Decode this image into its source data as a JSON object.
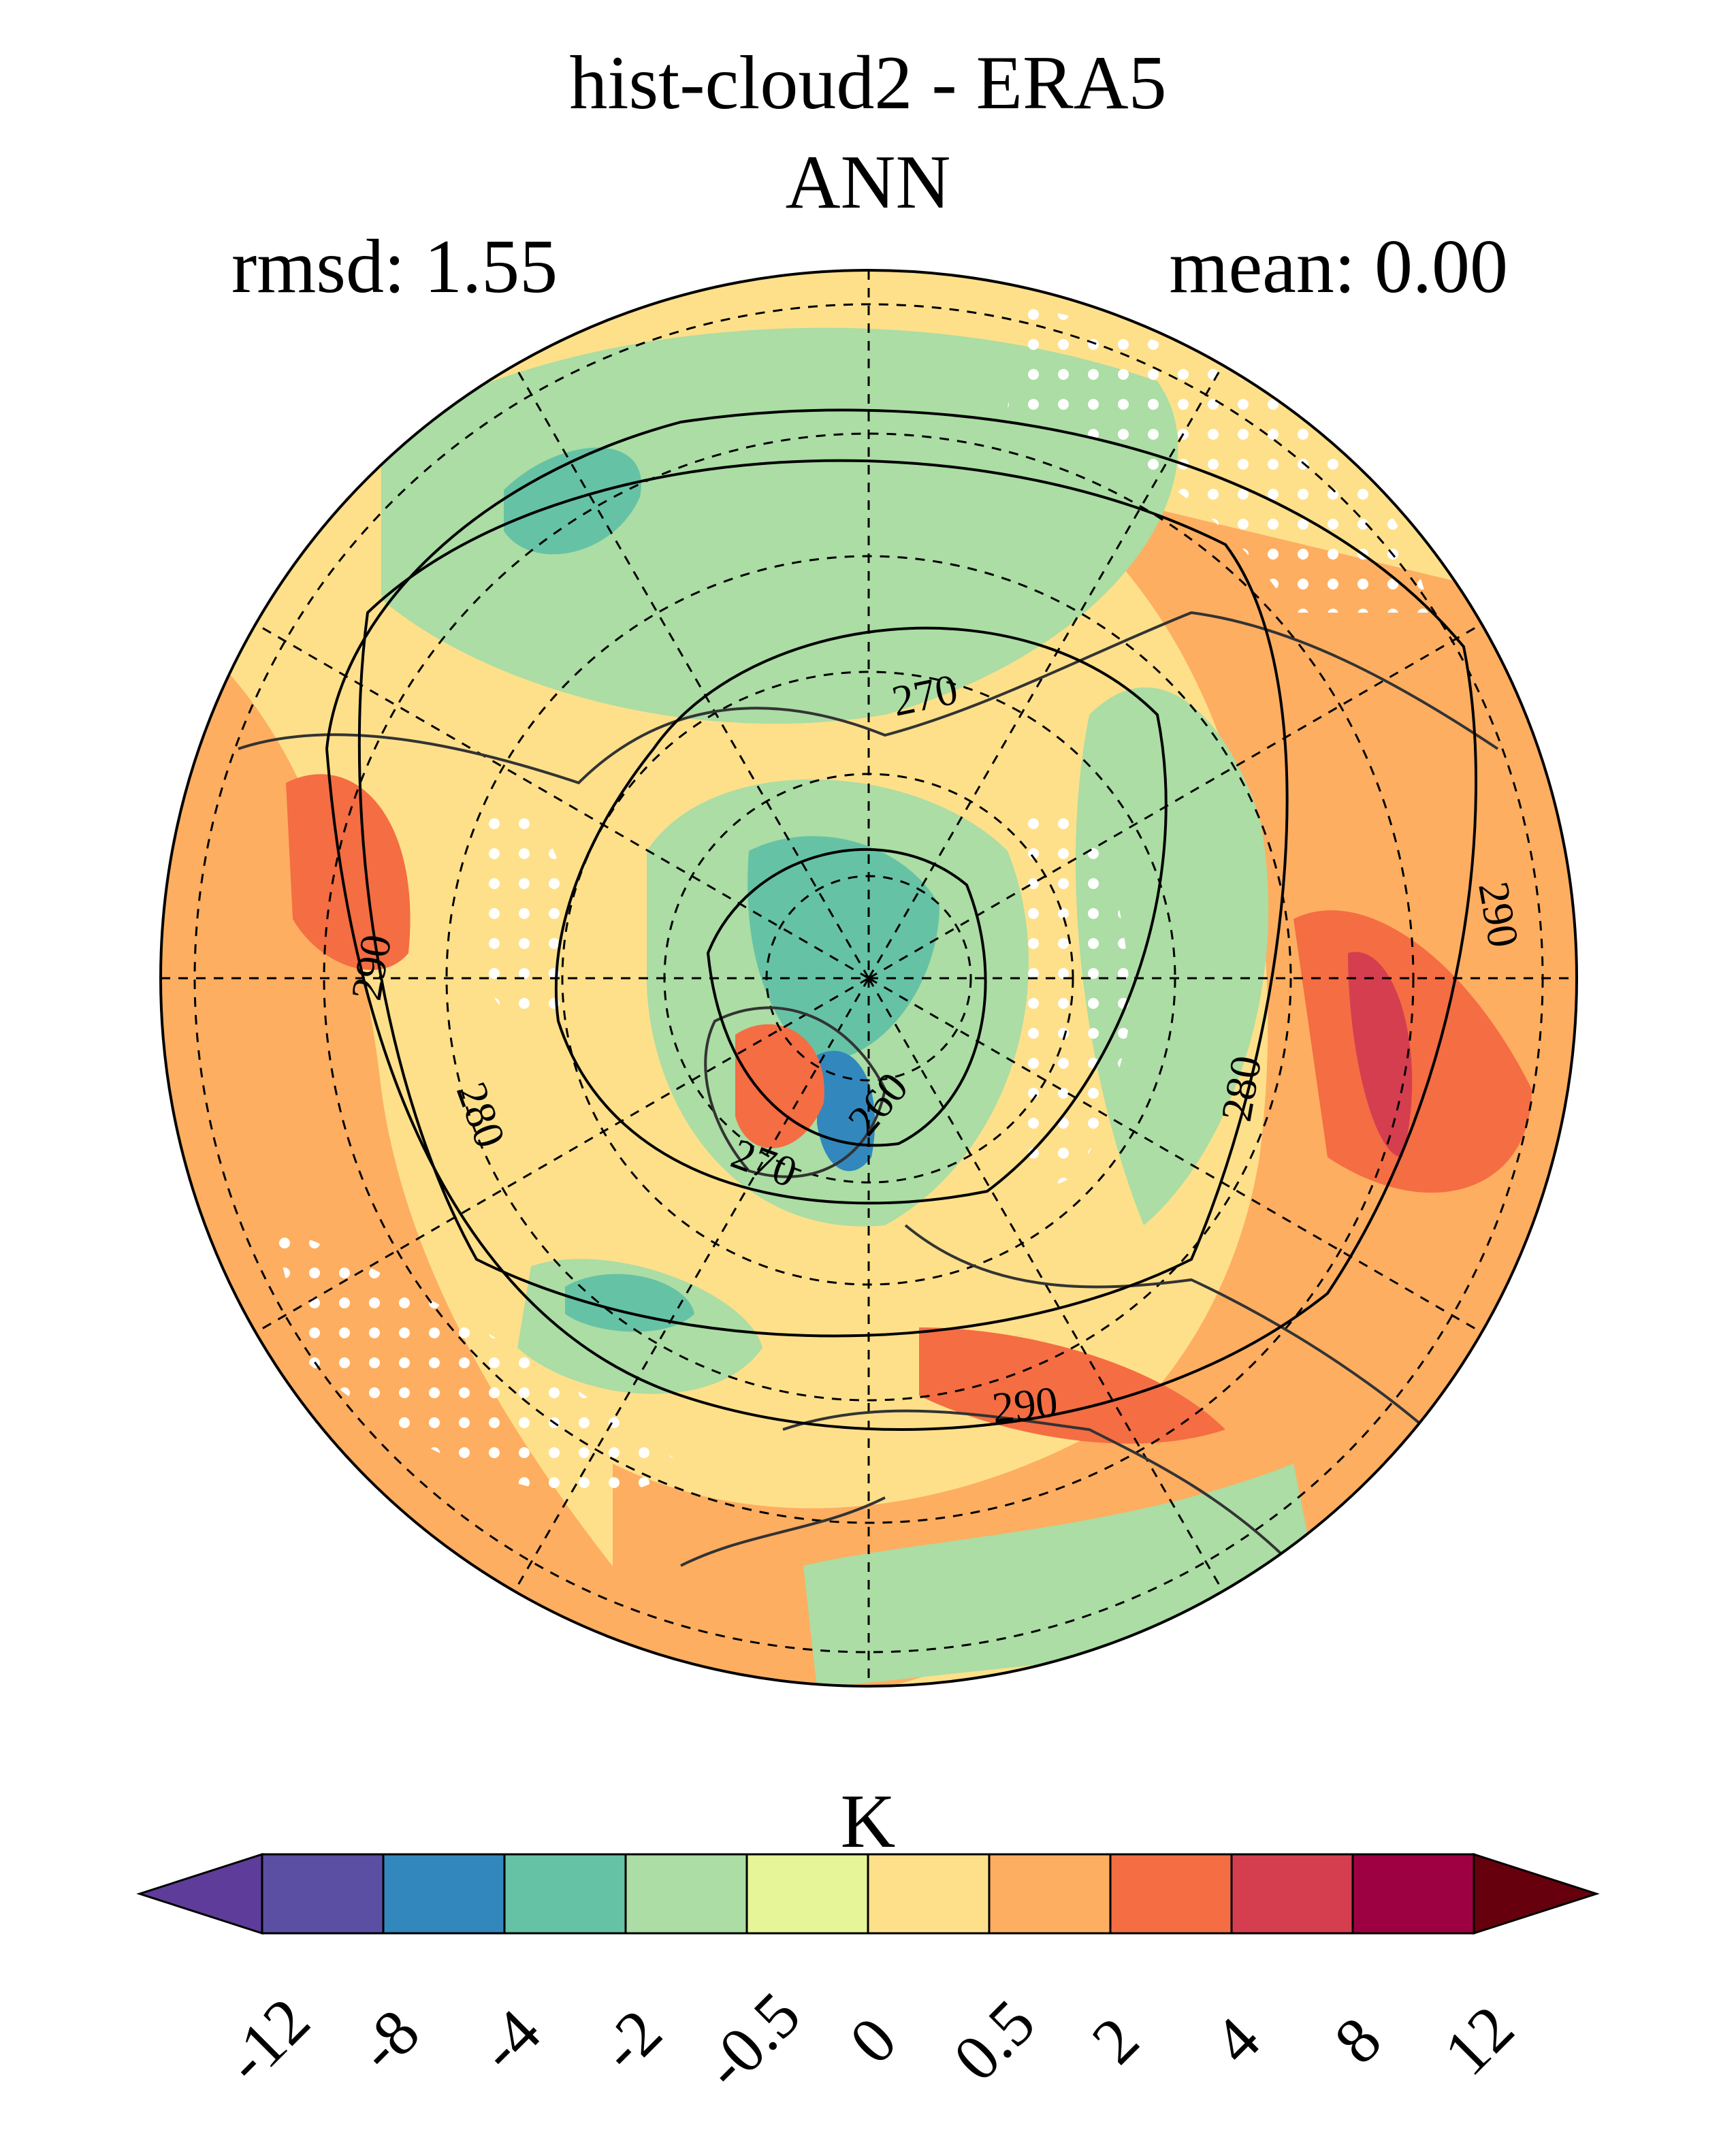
{
  "title": "hist-cloud2 - ERA5",
  "subtitle": "ANN",
  "rmsd_label": "rmsd: 1.55",
  "mean_label": "mean: 0.00",
  "colorbar": {
    "unit": "K",
    "ticks": [
      "-12",
      "-8",
      "-4",
      "-2",
      "-0.5",
      "0",
      "0.5",
      "2",
      "4",
      "8",
      "12"
    ],
    "colors": [
      "#5e3c99",
      "#5a4fa3",
      "#3288bd",
      "#66c2a5",
      "#abdda4",
      "#e6f598",
      "#fee08b",
      "#fdae61",
      "#f46d43",
      "#d53e4f",
      "#9e0142",
      "#67000d"
    ]
  },
  "contour_labels": [
    "270",
    "290",
    "290",
    "280",
    "260",
    "270",
    "280",
    "290"
  ],
  "map": {
    "projection": "north polar stereographic",
    "ocean_color": "#fee08b",
    "stipple": true
  }
}
